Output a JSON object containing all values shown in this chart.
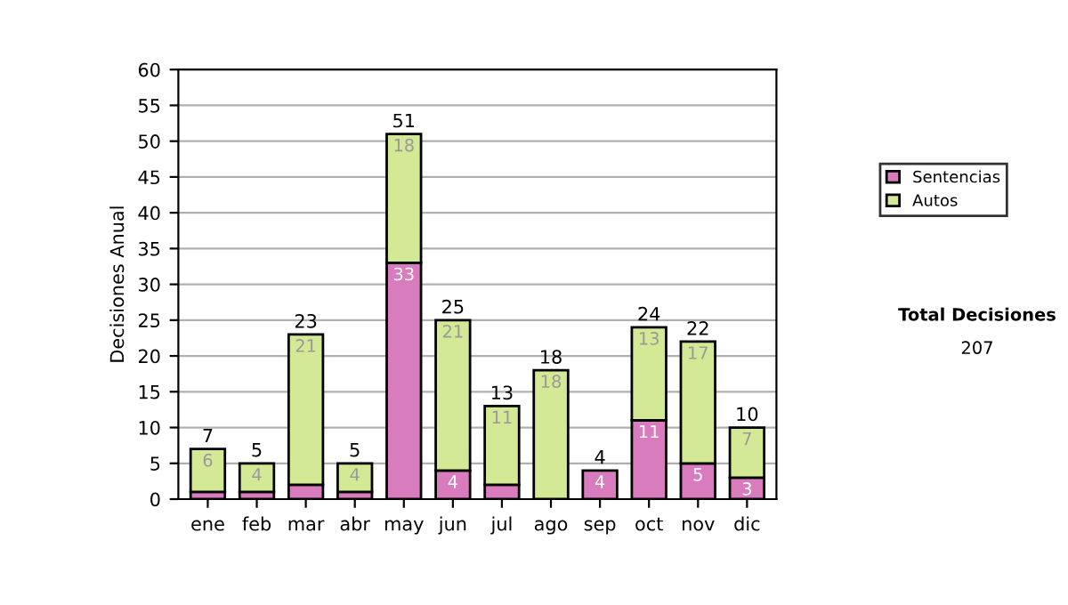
{
  "chart_data": {
    "type": "bar",
    "stacked": true,
    "ylabel": "Decisiones Anual",
    "categories": [
      "ene",
      "feb",
      "mar",
      "abr",
      "may",
      "jun",
      "jul",
      "ago",
      "sep",
      "oct",
      "nov",
      "dic"
    ],
    "series": [
      {
        "name": "Sentencias",
        "color": "#d97cbd",
        "values": [
          1,
          1,
          2,
          1,
          33,
          4,
          2,
          0,
          4,
          11,
          5,
          3
        ],
        "value_labels": [
          null,
          null,
          null,
          null,
          "33",
          "4",
          null,
          null,
          "4",
          "11",
          "5",
          "3"
        ]
      },
      {
        "name": "Autos",
        "color": "#d4e995",
        "values": [
          6,
          4,
          21,
          4,
          18,
          21,
          11,
          18,
          0,
          13,
          17,
          7
        ],
        "value_labels": [
          "6",
          "4",
          "21",
          "4",
          "18",
          "21",
          "11",
          "18",
          null,
          "13",
          "17",
          "7"
        ]
      }
    ],
    "totals": [
      "7",
      "5",
      "23",
      "5",
      "51",
      "25",
      "13",
      "18",
      "4",
      "24",
      "22",
      "10"
    ],
    "ylim": [
      0,
      60
    ],
    "yticks": [
      0,
      5,
      10,
      15,
      20,
      25,
      30,
      35,
      40,
      45,
      50,
      55,
      60
    ],
    "grid": "y",
    "legend": "right",
    "annotations": [
      "Total Decisiones",
      "207"
    ]
  }
}
